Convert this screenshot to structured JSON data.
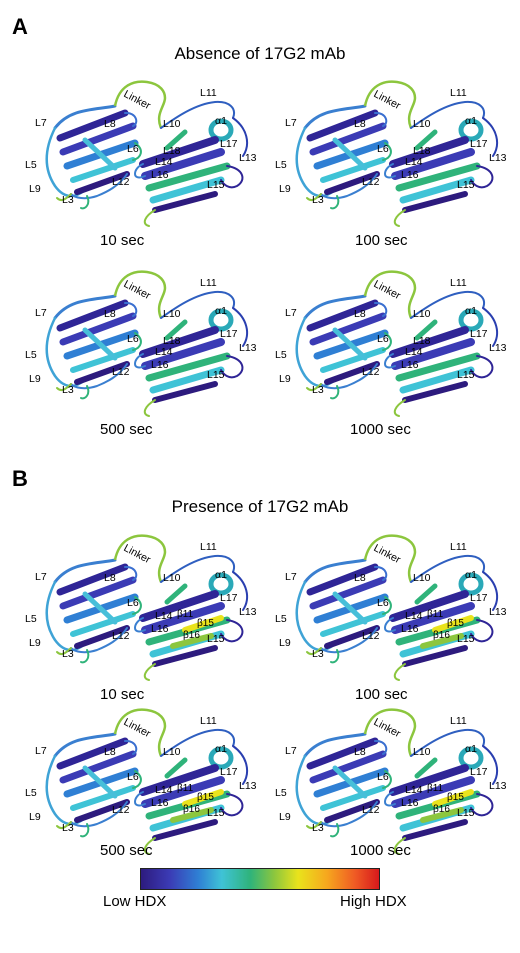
{
  "panel_a": {
    "letter": "A",
    "title": "Absence of 17G2 mAb",
    "timepoints": [
      "10 sec",
      "100 sec",
      "500 sec",
      "1000 sec"
    ]
  },
  "panel_b": {
    "letter": "B",
    "title": "Presence of 17G2 mAb",
    "timepoints": [
      "10 sec",
      "100 sec",
      "500 sec",
      "1000 sec"
    ]
  },
  "structure_labels": {
    "linker": "Linker",
    "l11": "L11",
    "l7": "L7",
    "l8": "L8",
    "l10": "L10",
    "alpha1": "α1",
    "l6": "L6",
    "l18": "L18",
    "l17": "L17",
    "l13": "L13",
    "l5": "L5",
    "l14": "L14",
    "l12": "L12",
    "l16": "L16",
    "l9": "L9",
    "l3": "L3",
    "l15": "L15",
    "b11": "β11",
    "b15": "β15",
    "b16": "β16"
  },
  "colorbar": {
    "low_label": "Low HDX",
    "high_label": "High HDX",
    "low_color": "#2d1b7e",
    "high_color": "#d7191c"
  }
}
